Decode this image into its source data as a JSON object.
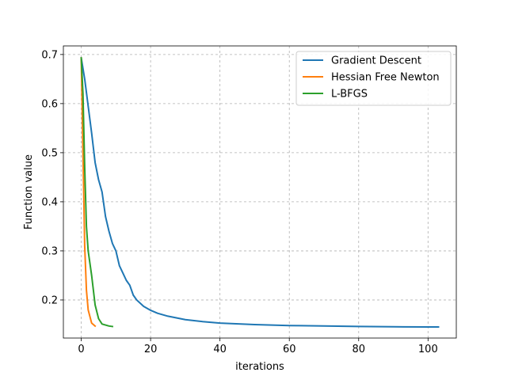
{
  "chart_data": {
    "type": "line",
    "xlabel": "iterations",
    "ylabel": "Function value",
    "xlim": [
      -5.15,
      108.15
    ],
    "ylim": [
      0.1225,
      0.7175
    ],
    "xticks": [
      0,
      20,
      40,
      60,
      80,
      100
    ],
    "yticks": [
      0.2,
      0.3,
      0.4,
      0.5,
      0.6,
      0.7
    ],
    "xtick_labels": [
      "0",
      "20",
      "40",
      "60",
      "80",
      "100"
    ],
    "ytick_labels": [
      "0.2",
      "0.3",
      "0.4",
      "0.5",
      "0.6",
      "0.7"
    ],
    "grid": true,
    "legend_position": "upper right",
    "series": [
      {
        "name": "Gradient Descent",
        "color": "#1f77b4",
        "x": [
          0,
          1,
          2,
          3,
          4,
          5,
          6,
          7,
          8,
          9,
          10,
          11,
          12,
          13,
          14,
          15,
          16,
          18,
          20,
          22,
          25,
          30,
          35,
          40,
          50,
          60,
          70,
          80,
          90,
          100,
          103
        ],
        "y": [
          0.693,
          0.65,
          0.595,
          0.54,
          0.48,
          0.445,
          0.42,
          0.37,
          0.34,
          0.315,
          0.3,
          0.27,
          0.255,
          0.24,
          0.23,
          0.21,
          0.2,
          0.187,
          0.179,
          0.173,
          0.167,
          0.16,
          0.156,
          0.153,
          0.15,
          0.148,
          0.147,
          0.146,
          0.1455,
          0.145,
          0.145
        ]
      },
      {
        "name": "Hessian Free Newton",
        "color": "#ff7f0e",
        "x": [
          0,
          0.5,
          1,
          1.5,
          2,
          3,
          4
        ],
        "y": [
          0.693,
          0.5,
          0.31,
          0.22,
          0.18,
          0.153,
          0.147
        ]
      },
      {
        "name": "L-BFGS",
        "color": "#2ca02c",
        "x": [
          0,
          0.5,
          1,
          1.5,
          2,
          3,
          4,
          5,
          6,
          7,
          8,
          9
        ],
        "y": [
          0.693,
          0.62,
          0.47,
          0.35,
          0.3,
          0.25,
          0.19,
          0.162,
          0.151,
          0.149,
          0.147,
          0.146
        ]
      }
    ]
  }
}
